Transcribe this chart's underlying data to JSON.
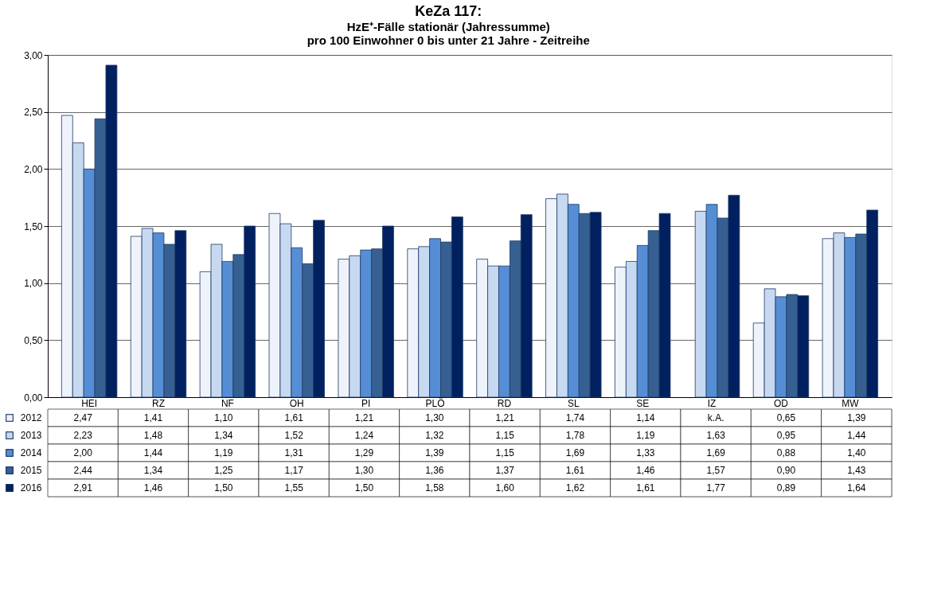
{
  "chart_data": {
    "type": "bar",
    "title": "KeZa 117:",
    "subtitle": [
      "HzE⁺-Fälle stationär (Jahressumme)",
      "pro 100 Einwohner 0 bis unter 21 Jahre - Zeitreihe"
    ],
    "categories": [
      "HEI",
      "RZ",
      "NF",
      "OH",
      "PI",
      "PLÖ",
      "RD",
      "SL",
      "SE",
      "IZ",
      "OD",
      "MW"
    ],
    "series": [
      {
        "name": "2012",
        "color": "#eef3fb",
        "values": [
          2.47,
          1.41,
          1.1,
          1.61,
          1.21,
          1.3,
          1.21,
          1.74,
          1.14,
          null,
          0.65,
          1.39
        ],
        "value_labels": [
          "2,47",
          "1,41",
          "1,10",
          "1,61",
          "1,21",
          "1,30",
          "1,21",
          "1,74",
          "1,14",
          "k.A.",
          "0,65",
          "1,39"
        ]
      },
      {
        "name": "2013",
        "color": "#c6d9f1",
        "values": [
          2.23,
          1.48,
          1.34,
          1.52,
          1.24,
          1.32,
          1.15,
          1.78,
          1.19,
          1.63,
          0.95,
          1.44
        ],
        "value_labels": [
          "2,23",
          "1,48",
          "1,34",
          "1,52",
          "1,24",
          "1,32",
          "1,15",
          "1,78",
          "1,19",
          "1,63",
          "0,95",
          "1,44"
        ]
      },
      {
        "name": "2014",
        "color": "#558ed5",
        "values": [
          2.0,
          1.44,
          1.19,
          1.31,
          1.29,
          1.39,
          1.15,
          1.69,
          1.33,
          1.69,
          0.88,
          1.4
        ],
        "value_labels": [
          "2,00",
          "1,44",
          "1,19",
          "1,31",
          "1,29",
          "1,39",
          "1,15",
          "1,69",
          "1,33",
          "1,69",
          "0,88",
          "1,40"
        ]
      },
      {
        "name": "2015",
        "color": "#376092",
        "values": [
          2.44,
          1.34,
          1.25,
          1.17,
          1.3,
          1.36,
          1.37,
          1.61,
          1.46,
          1.57,
          0.9,
          1.43
        ],
        "value_labels": [
          "2,44",
          "1,34",
          "1,25",
          "1,17",
          "1,30",
          "1,36",
          "1,37",
          "1,61",
          "1,46",
          "1,57",
          "0,90",
          "1,43"
        ]
      },
      {
        "name": "2016",
        "color": "#002060",
        "values": [
          2.91,
          1.46,
          1.5,
          1.55,
          1.5,
          1.58,
          1.6,
          1.62,
          1.61,
          1.77,
          0.89,
          1.64
        ],
        "value_labels": [
          "2,91",
          "1,46",
          "1,50",
          "1,55",
          "1,50",
          "1,58",
          "1,60",
          "1,62",
          "1,61",
          "1,77",
          "0,89",
          "1,64"
        ]
      }
    ],
    "ylim": [
      0,
      3
    ],
    "yticks": [
      {
        "value": 0,
        "label": "0,00"
      },
      {
        "value": 0.5,
        "label": "0,50"
      },
      {
        "value": 1,
        "label": "1,00"
      },
      {
        "value": 1.5,
        "label": "1,50"
      },
      {
        "value": 2,
        "label": "2,00"
      },
      {
        "value": 2.5,
        "label": "2,50"
      },
      {
        "value": 3,
        "label": "3,00"
      }
    ],
    "grid": "y",
    "legend": "bottom"
  }
}
